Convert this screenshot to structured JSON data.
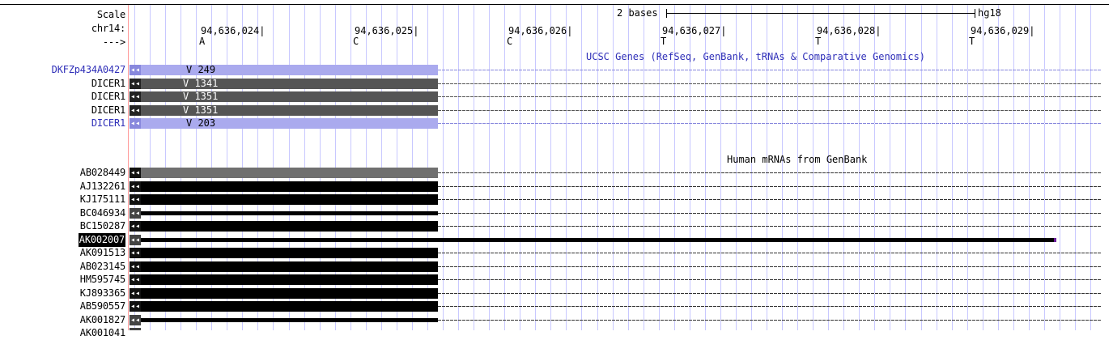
{
  "ruler": {
    "scale_label": "Scale",
    "chrom_label": "chr14:",
    "strand_label": "--->",
    "scale_text": "2 bases",
    "assembly": "hg18",
    "positions": [
      "94,636,024",
      "94,636,025",
      "94,636,026",
      "94,636,027",
      "94,636,028",
      "94,636,029"
    ],
    "bases": [
      "A",
      "C",
      "C",
      "T",
      "T",
      "T"
    ]
  },
  "ucsc_genes": {
    "title": "UCSC Genes (RefSeq, GenBank, tRNAs & Comparative Genomics)",
    "rows": [
      {
        "name": "DKFZp434A0427",
        "text": "V 249",
        "style": "light"
      },
      {
        "name": "DICER1",
        "text": "V 1341",
        "style": "dark"
      },
      {
        "name": "DICER1",
        "text": "V 1351",
        "style": "dark"
      },
      {
        "name": "DICER1",
        "text": "V 1351",
        "style": "dark"
      },
      {
        "name": "DICER1",
        "text": "V 203",
        "style": "light"
      }
    ]
  },
  "mrnas": {
    "title": "Human mRNAs from GenBank",
    "rows": [
      {
        "name": "AB028449",
        "style": "gray"
      },
      {
        "name": "AJ132261",
        "style": "black"
      },
      {
        "name": "KJ175111",
        "style": "black"
      },
      {
        "name": "BC046934",
        "style": "thin"
      },
      {
        "name": "BC150287",
        "style": "black"
      },
      {
        "name": "AK002007",
        "style": "thin-long",
        "highlight": true
      },
      {
        "name": "AK091513",
        "style": "black"
      },
      {
        "name": "AB023145",
        "style": "black"
      },
      {
        "name": "HM595745",
        "style": "black"
      },
      {
        "name": "KJ893365",
        "style": "black"
      },
      {
        "name": "AB590557",
        "style": "black"
      },
      {
        "name": "AK001827",
        "style": "thin"
      },
      {
        "name": "AK001041",
        "style": "thin"
      }
    ]
  },
  "colors": {
    "light_gene": "#aaaaee",
    "dark_gene": "#555555",
    "gray_mrna": "#707070",
    "black_mrna": "#000000",
    "label_blue": "#2f2fb8",
    "grid": "#c8c8ff",
    "separator": "#ff9999"
  }
}
